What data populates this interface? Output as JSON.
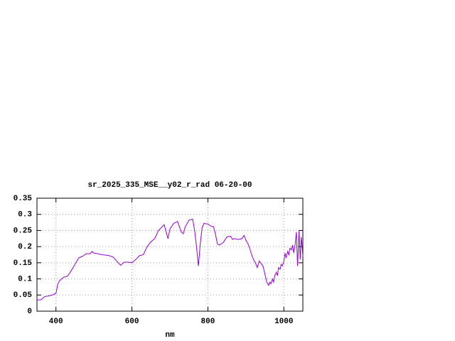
{
  "chart_data": {
    "type": "line",
    "title": "sr_2025_335_MSE__y02_r_rad 06-20-00",
    "xlabel": "nm",
    "x": [
      350,
      360,
      370,
      380,
      390,
      400,
      405,
      410,
      420,
      430,
      440,
      450,
      460,
      470,
      480,
      490,
      495,
      500,
      510,
      520,
      530,
      540,
      550,
      560,
      570,
      580,
      590,
      600,
      610,
      620,
      630,
      640,
      650,
      660,
      670,
      680,
      685,
      690,
      695,
      700,
      710,
      720,
      730,
      735,
      740,
      750,
      760,
      765,
      770,
      775,
      780,
      785,
      790,
      800,
      810,
      815,
      820,
      825,
      830,
      840,
      850,
      860,
      865,
      870,
      880,
      890,
      895,
      900,
      905,
      910,
      915,
      920,
      925,
      930,
      935,
      940,
      945,
      950,
      955,
      960,
      963,
      966,
      970,
      973,
      976,
      980,
      983,
      986,
      990,
      993,
      996,
      1000,
      1003,
      1006,
      1010,
      1013,
      1016,
      1020,
      1023,
      1026,
      1030,
      1033,
      1036,
      1040,
      1043,
      1046,
      1050
    ],
    "values": [
      0.035,
      0.035,
      0.045,
      0.047,
      0.05,
      0.055,
      0.085,
      0.095,
      0.105,
      0.108,
      0.125,
      0.145,
      0.165,
      0.17,
      0.178,
      0.178,
      0.185,
      0.18,
      0.178,
      0.175,
      0.174,
      0.172,
      0.168,
      0.155,
      0.142,
      0.152,
      0.152,
      0.15,
      0.16,
      0.172,
      0.175,
      0.2,
      0.215,
      0.225,
      0.25,
      0.262,
      0.268,
      0.245,
      0.225,
      0.255,
      0.272,
      0.278,
      0.245,
      0.24,
      0.26,
      0.282,
      0.285,
      0.25,
      0.2,
      0.14,
      0.21,
      0.26,
      0.272,
      0.27,
      0.262,
      0.262,
      0.238,
      0.208,
      0.205,
      0.212,
      0.23,
      0.232,
      0.222,
      0.225,
      0.222,
      0.225,
      0.235,
      0.22,
      0.21,
      0.195,
      0.175,
      0.16,
      0.15,
      0.135,
      0.155,
      0.148,
      0.14,
      0.115,
      0.09,
      0.08,
      0.09,
      0.085,
      0.1,
      0.09,
      0.11,
      0.12,
      0.11,
      0.135,
      0.13,
      0.145,
      0.14,
      0.155,
      0.18,
      0.165,
      0.185,
      0.175,
      0.195,
      0.19,
      0.205,
      0.18,
      0.21,
      0.245,
      0.14,
      0.25,
      0.16,
      0.23,
      0.17
    ],
    "color": "#9400d3",
    "xlim": [
      350,
      1050
    ],
    "xticks": [
      400,
      600,
      800,
      1000
    ],
    "ylim": [
      0,
      0.35
    ],
    "yticks": [
      0,
      0.05,
      0.1,
      0.15,
      0.2,
      0.25,
      0.3,
      0.35
    ],
    "grid": true
  }
}
